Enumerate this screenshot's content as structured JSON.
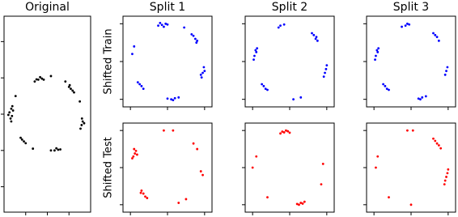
{
  "chart_data": [
    {
      "type": "scatter",
      "title": "Original",
      "color": "#000000",
      "x": [
        -1.0,
        -1.05,
        -0.98,
        -1.02,
        -0.95,
        -1.08,
        -0.97,
        -1.0,
        -0.25,
        -0.15,
        -0.35,
        -0.2,
        -0.3,
        -0.1,
        0.6,
        0.65,
        0.7,
        0.62,
        0.74,
        0.95,
        0.98,
        0.92,
        1.02,
        0.96,
        0.2,
        0.3,
        0.1,
        0.25,
        0.36,
        -0.65,
        -0.7,
        -0.6,
        -0.74,
        0.1,
        -0.88,
        0.9,
        -0.4,
        0.5
      ],
      "y": [
        0.15,
        0.05,
        -0.05,
        -0.12,
        0.1,
        -0.02,
        0.22,
        -0.2,
        0.95,
        0.98,
        0.9,
        1.02,
        0.96,
        0.95,
        0.75,
        0.7,
        0.65,
        0.8,
        0.6,
        -0.3,
        -0.2,
        -0.4,
        -0.25,
        -0.12,
        -1.0,
        -0.98,
        -1.0,
        -0.94,
        -0.97,
        -0.75,
        -0.7,
        -0.8,
        -0.65,
        1.05,
        0.5,
        0.35,
        -0.95,
        0.9
      ],
      "xlim": [
        -1.2,
        1.2
      ],
      "ylim": [
        -2.7,
        2.7
      ],
      "xticks": [
        -0.6,
        0,
        0.6
      ],
      "yticks": [
        -2,
        -1,
        0,
        1,
        2
      ]
    },
    {
      "type": "scatter",
      "title": "Split 1",
      "ylabel": "Shifted Train",
      "color": "#0000ff",
      "x": [
        -0.15,
        -0.05,
        -0.25,
        -0.1,
        0.0,
        -0.2,
        0.75,
        0.7,
        0.8,
        0.65,
        0.78,
        0.95,
        0.98,
        0.92,
        1.0,
        0.9,
        0.2,
        0.1,
        0.3,
        0.0,
        0.15,
        -0.7,
        -0.75,
        -0.65,
        -0.8,
        -0.9,
        -0.95,
        0.45
      ],
      "y": [
        0.97,
        1.0,
        0.95,
        0.92,
        0.98,
        1.02,
        0.6,
        0.68,
        0.55,
        0.72,
        0.5,
        -0.3,
        -0.15,
        -0.42,
        -0.25,
        -0.35,
        -0.97,
        -1.0,
        -0.95,
        -0.98,
        -1.02,
        -0.65,
        -0.6,
        -0.72,
        -0.55,
        0.4,
        0.2,
        0.9
      ],
      "xlim": [
        -1.2,
        1.2
      ],
      "ylim": [
        -1.2,
        1.2
      ],
      "xticks": [
        -1,
        0,
        1
      ],
      "yticks": [
        -1,
        0,
        1
      ]
    },
    {
      "type": "scatter",
      "ylabel": "Shifted Test",
      "color": "#ff0000",
      "x": [
        -0.88,
        -0.92,
        -0.85,
        -0.95,
        -0.9,
        -0.82,
        -0.65,
        -0.7,
        -0.6,
        -0.55,
        -0.72,
        0.15,
        -0.1,
        0.7,
        0.8,
        0.95,
        0.9,
        0.5,
        0.3
      ],
      "y": [
        0.38,
        0.3,
        0.45,
        0.25,
        0.5,
        0.35,
        -0.7,
        -0.62,
        -0.78,
        -0.82,
        -0.68,
        1.0,
        1.0,
        0.65,
        0.5,
        -0.2,
        -0.1,
        -0.85,
        -0.95
      ],
      "xlim": [
        -1.2,
        1.2
      ],
      "ylim": [
        -1.2,
        1.2
      ],
      "xticks": [
        -1,
        0,
        1
      ],
      "yticks": [
        -1,
        0,
        1
      ]
    },
    {
      "type": "scatter",
      "title": "Split 2",
      "color": "#0000ff",
      "x": [
        -0.9,
        -0.95,
        -0.88,
        -0.97,
        -0.92,
        -0.25,
        -0.15,
        -0.3,
        0.7,
        0.65,
        0.75,
        0.6,
        0.72,
        0.95,
        0.98,
        0.92,
        1.0,
        -0.7,
        -0.65,
        -0.75,
        -0.6,
        0.1,
        0.3
      ],
      "y": [
        0.25,
        0.15,
        0.35,
        0.05,
        0.3,
        0.95,
        0.98,
        0.9,
        0.6,
        0.7,
        0.55,
        0.75,
        0.65,
        -0.3,
        -0.2,
        -0.4,
        -0.1,
        -0.65,
        -0.72,
        -0.6,
        -0.75,
        -1.0,
        -0.95
      ],
      "xlim": [
        -1.2,
        1.2
      ],
      "ylim": [
        -1.2,
        1.2
      ],
      "xticks": [
        -1,
        0,
        1
      ],
      "yticks": [
        -1,
        0,
        1
      ]
    },
    {
      "type": "scatter",
      "color": "#ff0000",
      "x": [
        -0.15,
        -0.05,
        -0.25,
        -0.1,
        0.0,
        -0.2,
        0.3,
        0.2,
        0.4,
        0.25,
        0.35,
        -0.9,
        -1.0,
        0.85,
        0.9,
        -0.6
      ],
      "y": [
        0.95,
        0.98,
        0.92,
        1.0,
        0.94,
        0.97,
        -0.95,
        -0.98,
        -0.92,
        -1.0,
        -0.97,
        0.3,
        0.0,
        -0.45,
        0.1,
        -0.8
      ],
      "xlim": [
        -1.2,
        1.2
      ],
      "ylim": [
        -1.2,
        1.2
      ],
      "xticks": [
        -1,
        0,
        1
      ],
      "yticks": [
        -1,
        0,
        1
      ]
    },
    {
      "type": "scatter",
      "title": "Split 3",
      "color": "#0000ff",
      "x": [
        -0.9,
        -0.95,
        -0.88,
        -0.97,
        -0.92,
        -0.15,
        -0.05,
        -0.25,
        -0.1,
        0.7,
        0.65,
        0.75,
        0.6,
        0.95,
        0.98,
        0.92,
        -0.7,
        -0.65,
        -0.75,
        -0.6,
        0.3,
        0.2,
        0.4,
        0.25
      ],
      "y": [
        0.25,
        0.15,
        0.35,
        0.05,
        0.3,
        0.95,
        0.98,
        0.92,
        1.0,
        0.65,
        0.7,
        0.55,
        0.75,
        -0.25,
        -0.15,
        -0.35,
        -0.65,
        -0.72,
        -0.6,
        -0.75,
        -0.95,
        -0.98,
        -0.92,
        -1.0
      ],
      "xlim": [
        -1.2,
        1.2
      ],
      "ylim": [
        -1.2,
        1.2
      ],
      "xticks": [
        -1,
        0,
        1
      ],
      "yticks": [
        -1,
        0,
        1
      ]
    },
    {
      "type": "scatter",
      "color": "#ff0000",
      "x": [
        0.7,
        0.65,
        0.75,
        0.8,
        0.6,
        0.95,
        0.98,
        0.92,
        0.9,
        1.0,
        -0.1,
        0.05,
        -0.9,
        -0.95,
        -0.6,
        0.0
      ],
      "y": [
        0.65,
        0.72,
        0.6,
        0.52,
        0.78,
        -0.25,
        -0.15,
        -0.35,
        -0.45,
        -0.05,
        1.0,
        1.0,
        0.3,
        0.0,
        -0.8,
        -1.0
      ],
      "xlim": [
        -1.2,
        1.2
      ],
      "ylim": [
        -1.2,
        1.2
      ],
      "xticks": [
        -1,
        0,
        1
      ],
      "yticks": [
        -1,
        0,
        1
      ]
    }
  ]
}
